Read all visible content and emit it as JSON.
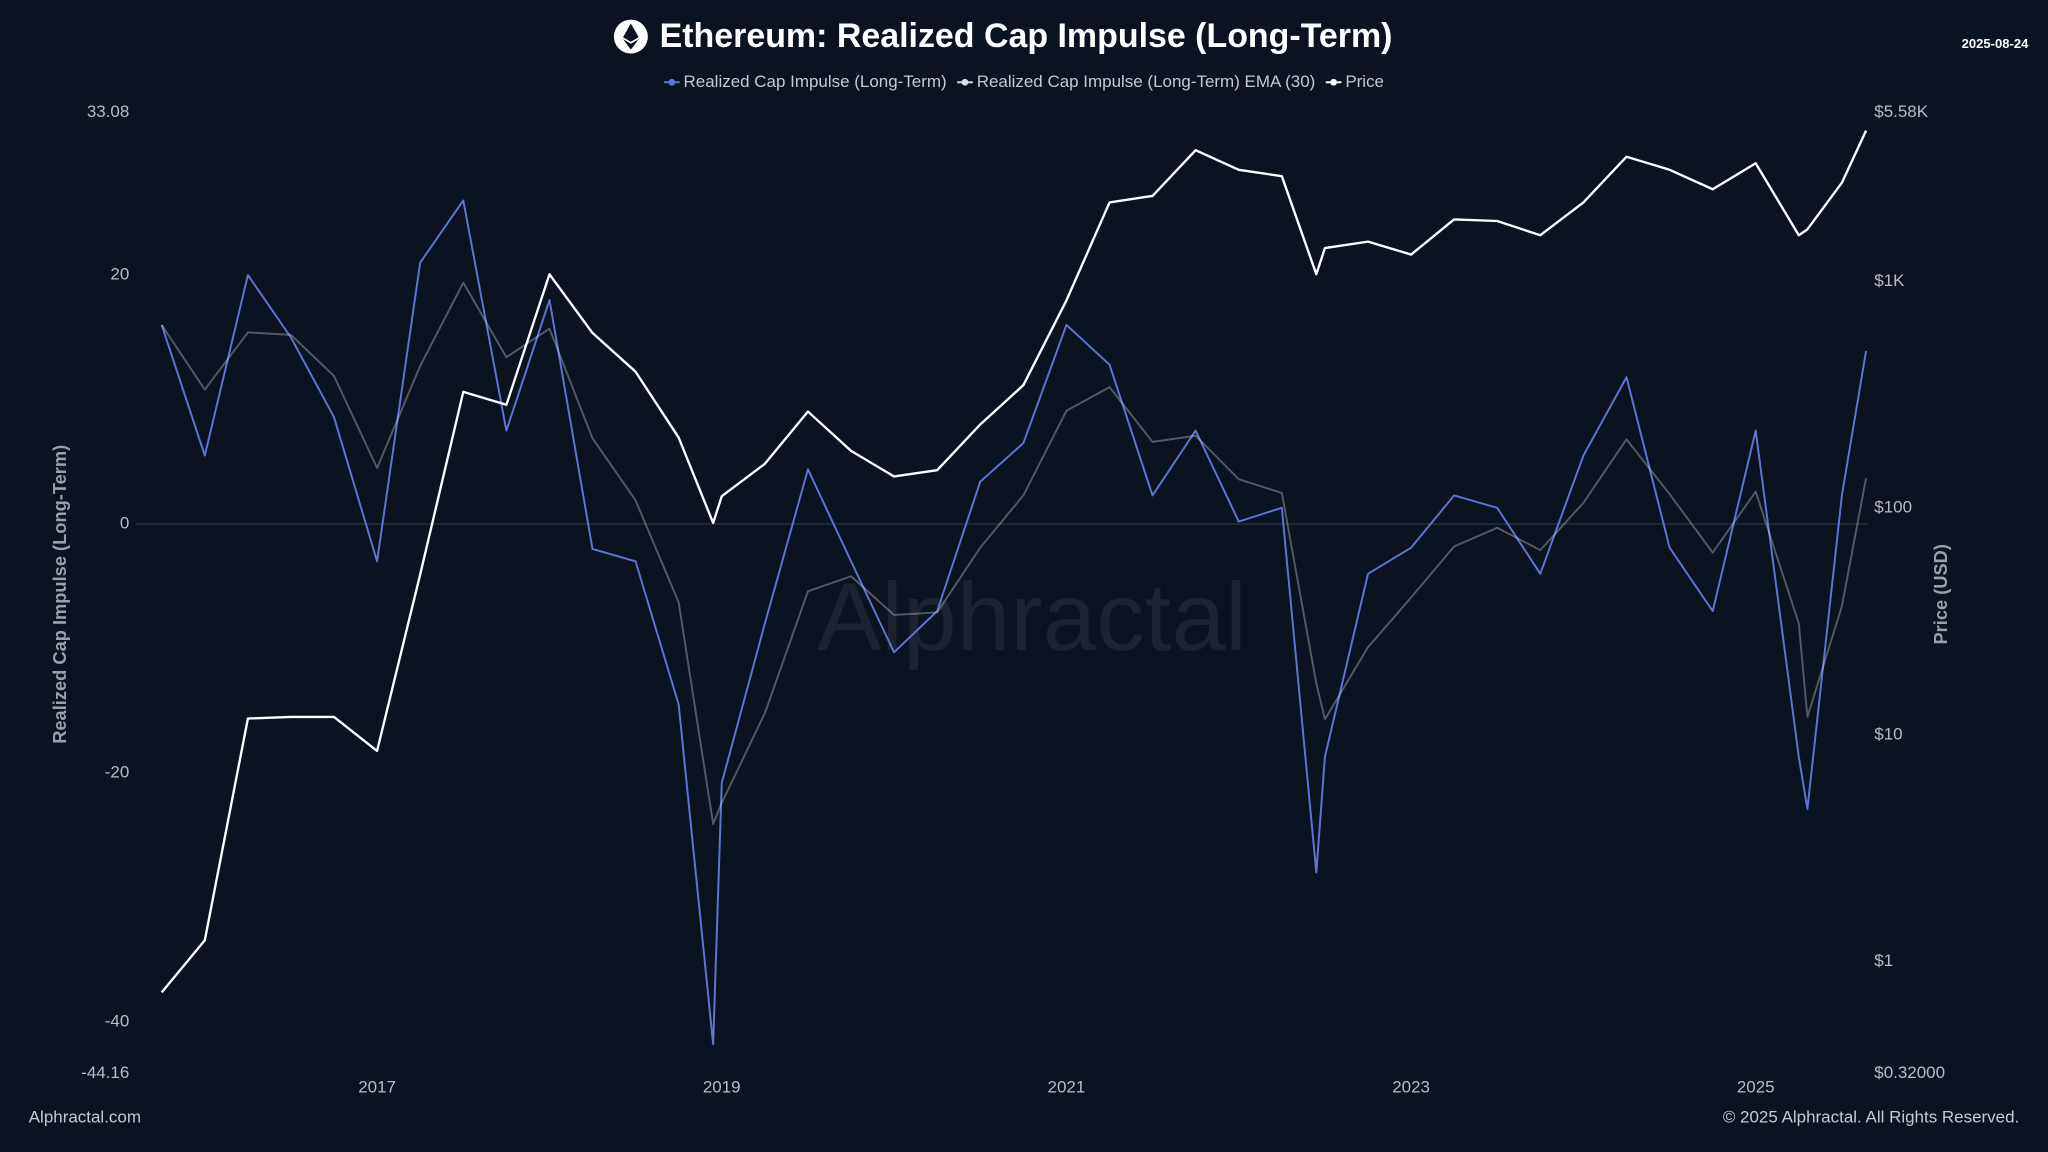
{
  "chart_data": {
    "type": "line",
    "title": "Ethereum: Realized Cap Impulse (Long-Term)",
    "date": "2025-08-24",
    "ylabel": "Realized Cap Impulse (Long-Term)",
    "y2label": "Price (USD)",
    "watermark": "Alphractal",
    "footer_left": "Alphractal.com",
    "footer_right": "© 2025 Alphractal. All Rights Reserved.",
    "background": "#0b1220",
    "legend": "top",
    "y2log": true,
    "zero_line": true,
    "x": [
      2015.75,
      2016,
      2016.25,
      2016.5,
      2016.75,
      2017,
      2017.25,
      2017.5,
      2017.75,
      2018,
      2018.25,
      2018.5,
      2018.75,
      2018.95,
      2019,
      2019.25,
      2019.5,
      2019.75,
      2020,
      2020.25,
      2020.5,
      2020.75,
      2021,
      2021.25,
      2021.5,
      2021.75,
      2022,
      2022.25,
      2022.45,
      2022.5,
      2022.75,
      2023,
      2023.25,
      2023.5,
      2023.75,
      2024,
      2024.25,
      2024.5,
      2024.75,
      2025,
      2025.25,
      2025.3,
      2025.5,
      2025.64
    ],
    "xlim": [
      2015.6,
      2025.65
    ],
    "xticks": [
      2017,
      2019,
      2021,
      2023,
      2025
    ],
    "ylim": [
      -44.16,
      33.08
    ],
    "yticks": [
      33.08,
      20,
      0,
      -20,
      -40,
      -44.16
    ],
    "y2lim": [
      0.32,
      5580
    ],
    "y2ticks": [
      {
        "value": 5580,
        "label": "$5.58K"
      },
      {
        "value": 1000,
        "label": "$1K"
      },
      {
        "value": 100,
        "label": "$100"
      },
      {
        "value": 10,
        "label": "$10"
      },
      {
        "value": 1,
        "label": "$1"
      },
      {
        "value": 0.32,
        "label": "$0.32000"
      }
    ],
    "series": [
      {
        "name": "Realized Cap Impulse (Long-Term)",
        "color": "#5b76d6",
        "values": [
          16,
          5.5,
          20,
          15,
          8.6,
          -3,
          21,
          26,
          7.5,
          18,
          -2,
          -3,
          -14.5,
          -41.8,
          -20.8,
          -8,
          4.4,
          -3,
          -10.3,
          -7,
          3.4,
          6.5,
          16,
          12.8,
          2.3,
          7.5,
          0.2,
          1.3,
          -28,
          -18.7,
          -4,
          -1.9,
          2.3,
          1.3,
          -4,
          5.5,
          11.8,
          -1.9,
          -7,
          7.5,
          -18.7,
          -22.9,
          2.3,
          13.9
        ]
      },
      {
        "name": "Realized Cap Impulse (Long-Term) EMA (30)",
        "color": "#d9dde6",
        "values": [
          16,
          10.8,
          15.4,
          15.2,
          11.9,
          4.5,
          12.7,
          19.4,
          13.4,
          15.7,
          6.9,
          1.9,
          -6.3,
          -24.1,
          -22.4,
          -15.2,
          -5.4,
          -4.2,
          -7.3,
          -7.1,
          -1.9,
          2.3,
          9.1,
          11.0,
          6.6,
          7.1,
          3.6,
          2.5,
          -12.8,
          -15.7,
          -9.9,
          -5.9,
          -1.8,
          -0.3,
          -2.1,
          1.7,
          6.8,
          2.4,
          -2.3,
          2.6,
          -8.0,
          -15.5,
          -6.6,
          3.7
        ]
      },
      {
        "name": "Price",
        "color": "#ffffff",
        "axis": "y2",
        "values": [
          0.73,
          1.24,
          11.8,
          12,
          12,
          8.5,
          51,
          326,
          286,
          1077,
          593,
          400,
          205,
          86,
          113,
          157,
          267,
          179,
          138,
          147,
          234,
          349,
          826,
          2234,
          2388,
          3800,
          3112,
          2917,
          1077,
          1406,
          1500,
          1315,
          1880,
          1850,
          1600,
          2234,
          3556,
          3112,
          2553,
          3327,
          1600,
          1700,
          2730,
          4634
        ]
      }
    ]
  }
}
